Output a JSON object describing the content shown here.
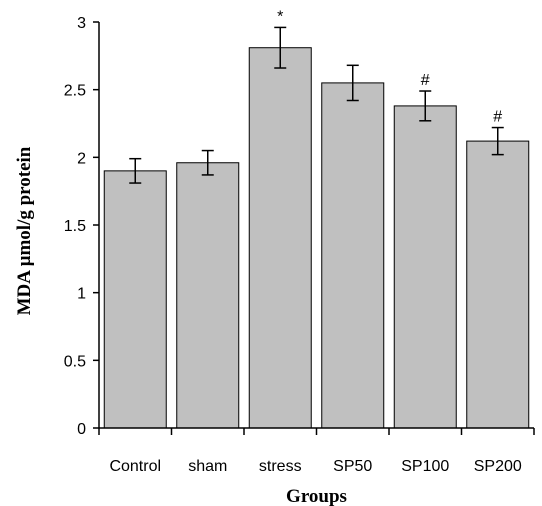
{
  "chart_data": {
    "type": "bar",
    "categories": [
      "Control",
      "sham",
      "stress",
      "SP50",
      "SP100",
      "SP200"
    ],
    "values": [
      1.9,
      1.96,
      2.81,
      2.55,
      2.38,
      2.12
    ],
    "errors": [
      0.09,
      0.09,
      0.15,
      0.13,
      0.11,
      0.1
    ],
    "annotations": [
      "",
      "",
      "*",
      "",
      "#",
      "#"
    ],
    "xlabel": "Groups",
    "ylabel": "MDA μmol/g protein",
    "ylim": [
      0,
      3
    ],
    "yticks": [
      "0",
      "0.5",
      "1",
      "1.5",
      "2",
      "2.5",
      "3"
    ],
    "ytick_values": [
      0,
      0.5,
      1,
      1.5,
      2,
      2.5,
      3
    ],
    "bar_color": "#c0c0c0",
    "bar_edge_color": "#000000",
    "grid": false,
    "legend": "none"
  }
}
